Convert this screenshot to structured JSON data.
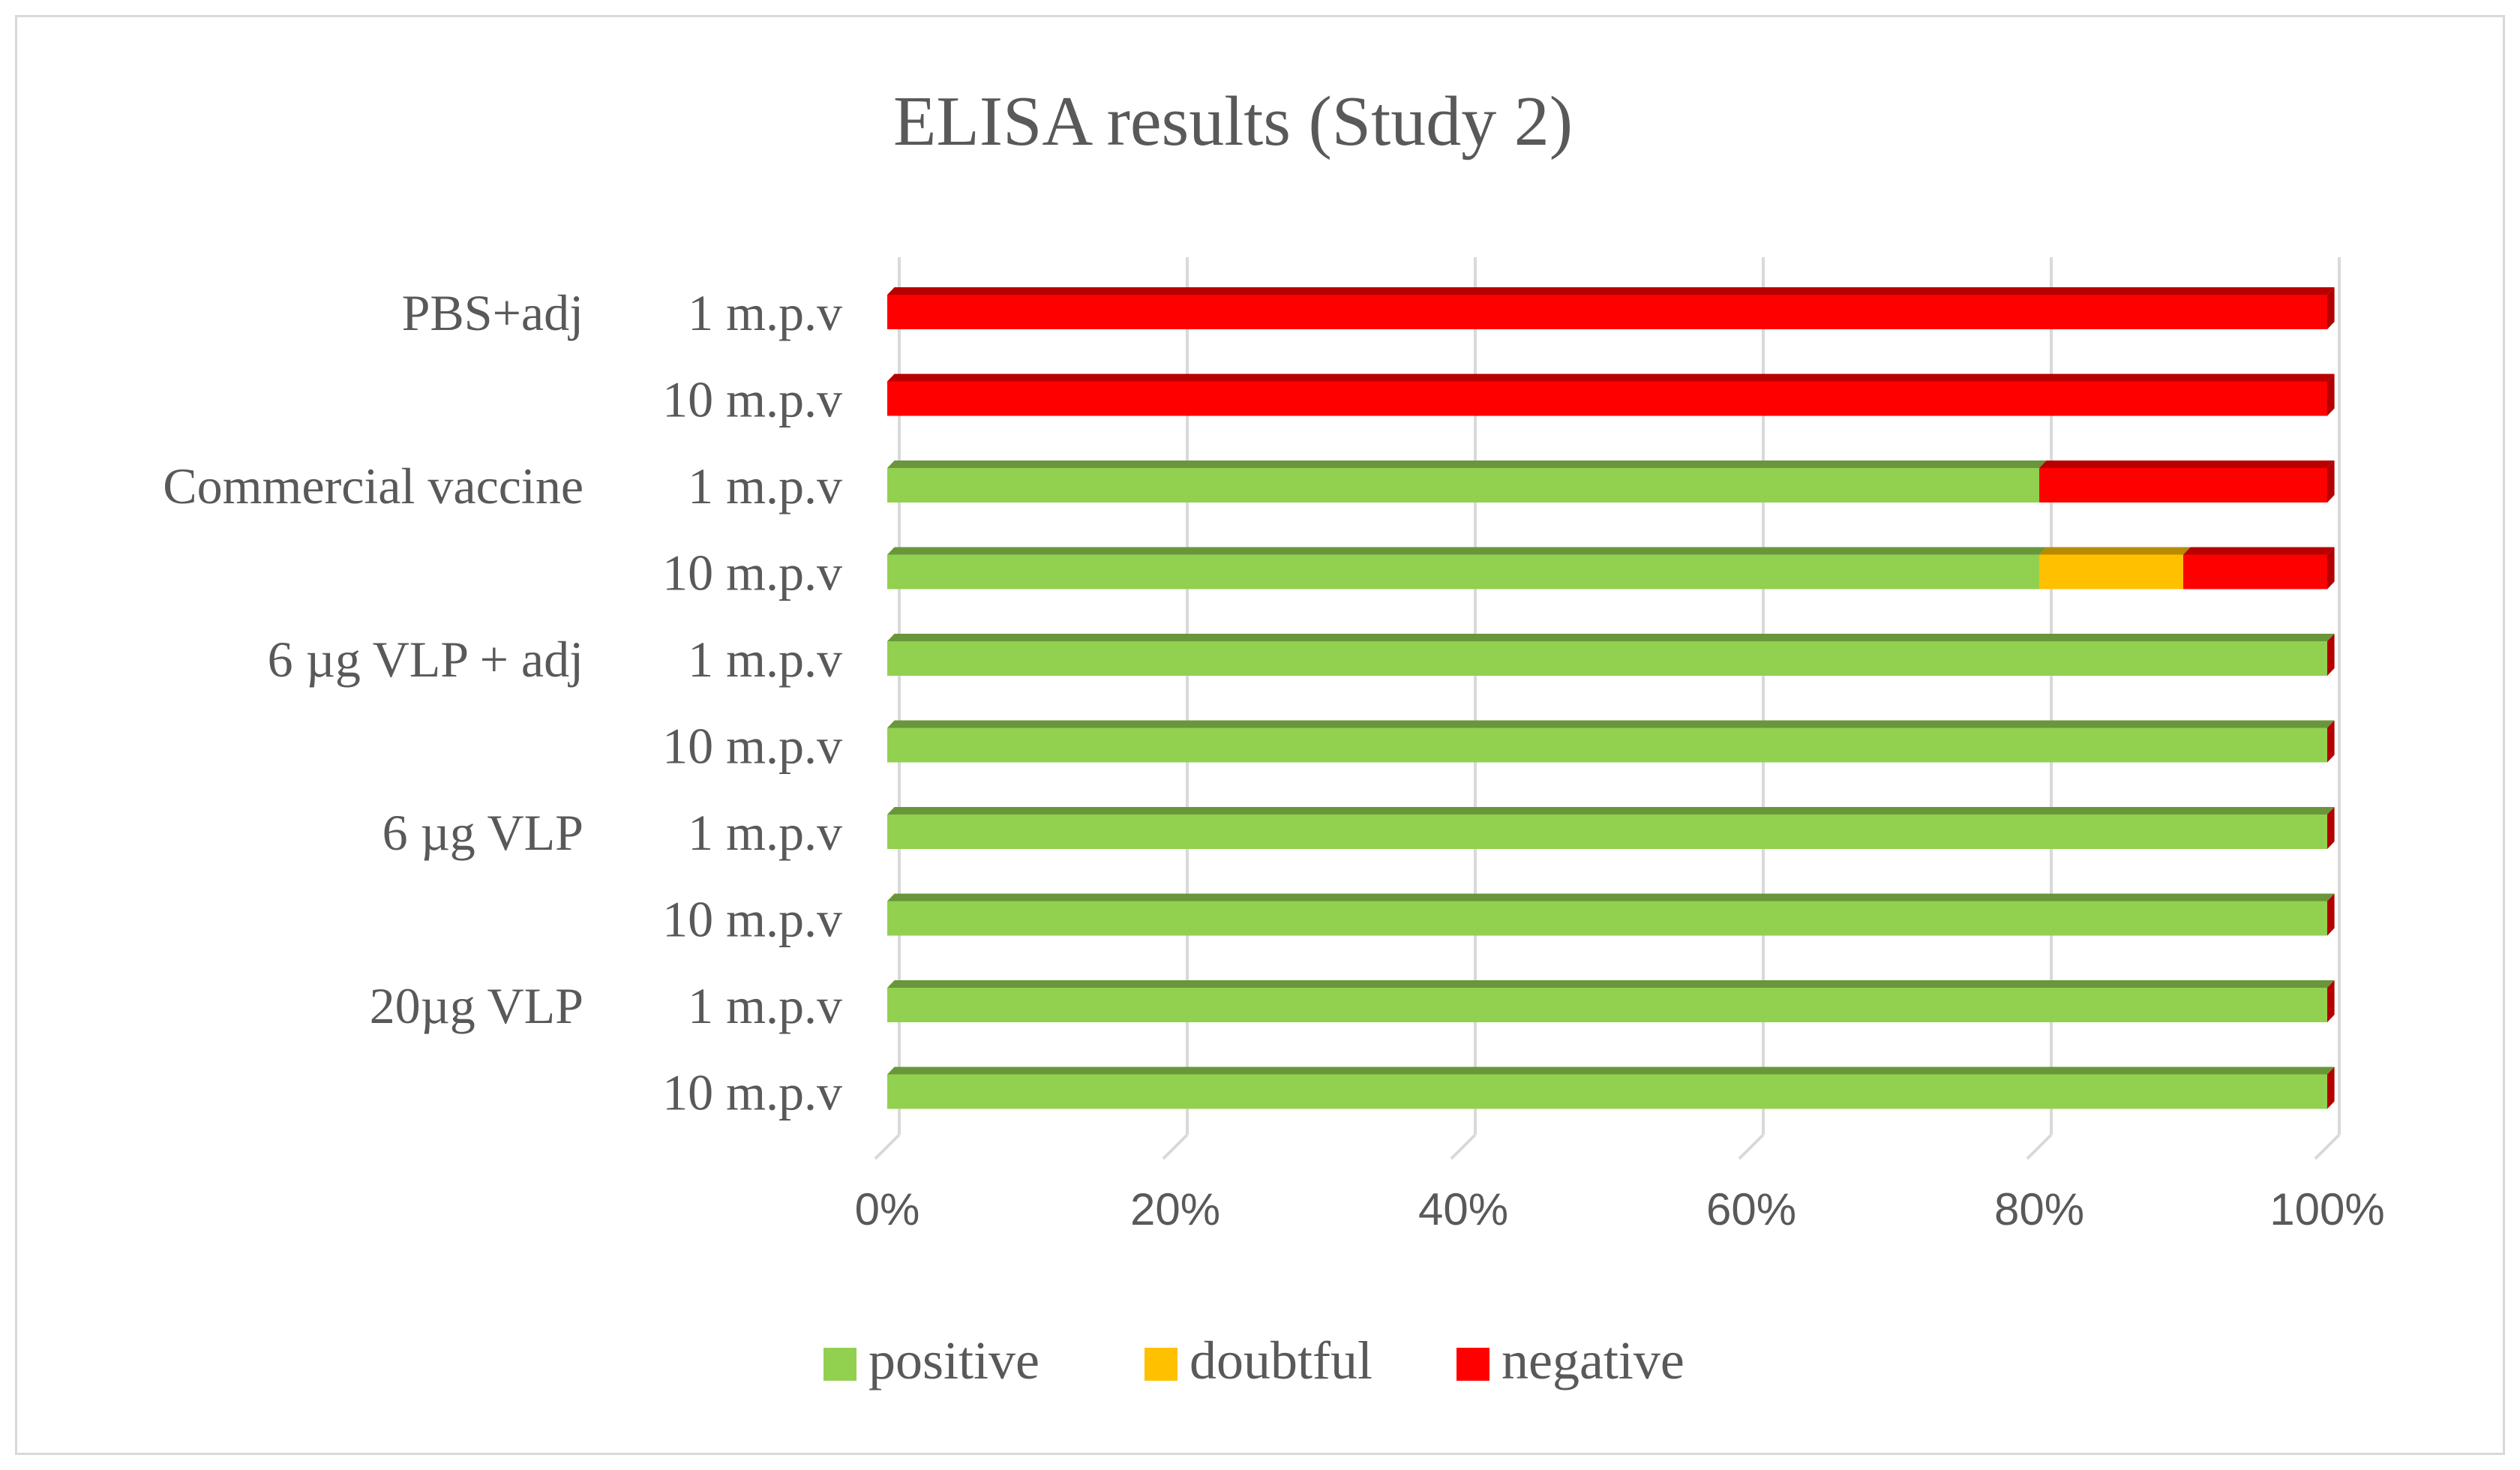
{
  "chart_data": {
    "type": "bar",
    "orientation": "horizontal",
    "stacking": "percent",
    "title": "ELISA results (Study 2)",
    "xlabel": "",
    "ylabel": "",
    "xlim": [
      0,
      100
    ],
    "x_ticks": [
      "0%",
      "20%",
      "40%",
      "60%",
      "80%",
      "100%"
    ],
    "grid": true,
    "legend_position": "bottom",
    "groups": [
      {
        "label": "PBS+adj",
        "start": 0,
        "count": 2
      },
      {
        "label": "Commercial vaccine",
        "start": 2,
        "count": 2
      },
      {
        "label": "6 µg VLP + adj",
        "start": 4,
        "count": 2
      },
      {
        "label": "6 µg VLP",
        "start": 6,
        "count": 2
      },
      {
        "label": "20µg VLP",
        "start": 8,
        "count": 2
      }
    ],
    "categories": [
      "1 m.p.v",
      "10 m.p.v",
      "1 m.p.v",
      "10 m.p.v",
      "1 m.p.v",
      "10 m.p.v",
      "1 m.p.v",
      "10 m.p.v",
      "1 m.p.v",
      "10 m.p.v"
    ],
    "series": [
      {
        "name": "positive",
        "color": "#92d050",
        "values": [
          0,
          0,
          80,
          80,
          100,
          100,
          100,
          100,
          100,
          100
        ]
      },
      {
        "name": "doubtful",
        "color": "#ffc000",
        "values": [
          0,
          0,
          0,
          10,
          0,
          0,
          0,
          0,
          0,
          0
        ]
      },
      {
        "name": "negative",
        "color": "#ff0000",
        "values": [
          100,
          100,
          20,
          10,
          0,
          0,
          0,
          0,
          0,
          0
        ]
      }
    ]
  }
}
